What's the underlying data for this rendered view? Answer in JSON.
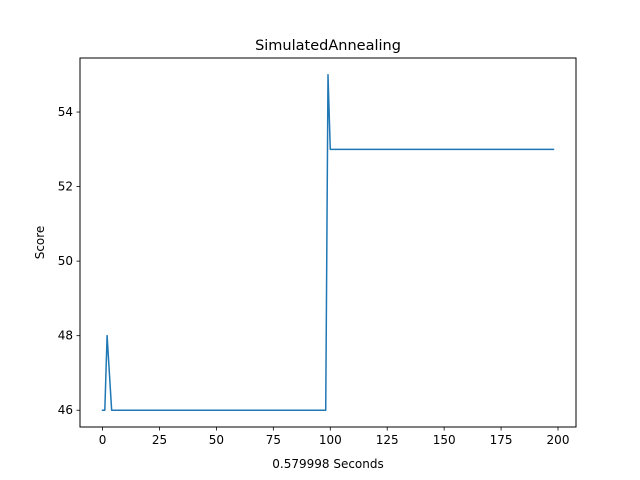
{
  "chart_data": {
    "type": "line",
    "title": "SimulatedAnnealing",
    "xlabel": "0.579998 Seconds",
    "ylabel": "Score",
    "xlim": [
      -9.9,
      207.9
    ],
    "ylim": [
      45.55,
      55.45
    ],
    "xticks": [
      0,
      25,
      50,
      75,
      100,
      125,
      150,
      175,
      200
    ],
    "yticks": [
      46,
      48,
      50,
      52,
      54
    ],
    "grid": false,
    "series": [
      {
        "color": "#1f77b4",
        "x": [
          0,
          1,
          2,
          4,
          98,
          99,
          100,
          198
        ],
        "y": [
          46,
          46,
          48,
          46,
          46,
          55,
          53,
          53
        ]
      }
    ]
  }
}
